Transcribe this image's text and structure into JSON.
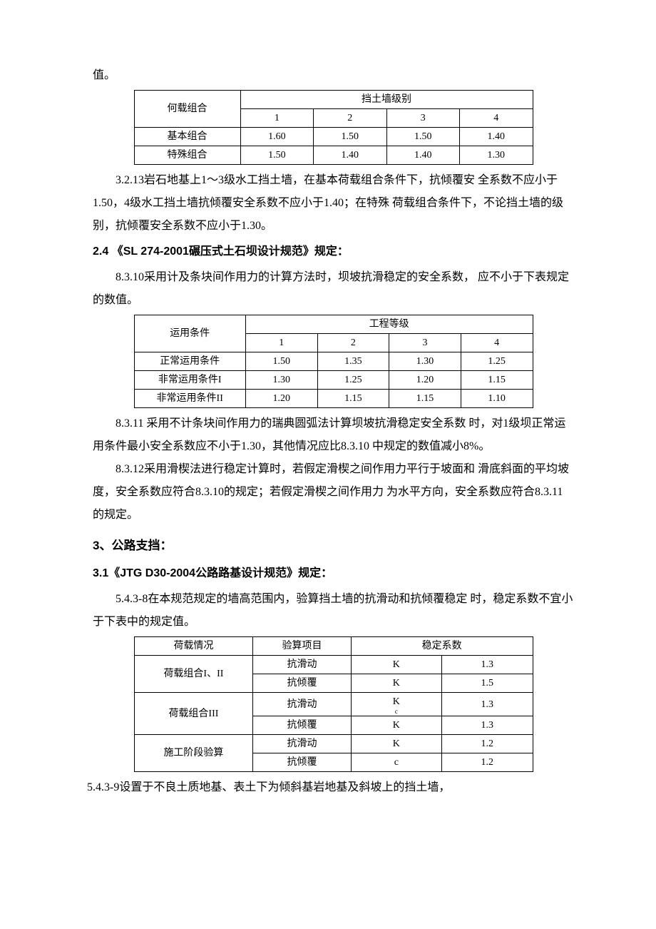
{
  "p_top": "值。",
  "table1": {
    "header_left": "何载组合",
    "header_span": "挡土墙级别",
    "cols": [
      "1",
      "2",
      "3",
      "4"
    ],
    "rows": [
      {
        "label": "基本组合",
        "vals": [
          "1.60",
          "1.50",
          "1.50",
          "1.40"
        ]
      },
      {
        "label": "特殊组合",
        "vals": [
          "1.50",
          "1.40",
          "1.40",
          "1.30"
        ]
      }
    ]
  },
  "p_3_2_13": "3.2.13岩石地基上1～3级水工挡土墙，在基本荷载组合条件下，抗倾覆安 全系数不应小于1.50，4级水工挡土墙抗倾覆安全系数不应小于1.40；在特殊 荷载组合条件下，不论挡土墙的级别，抗倾覆安全系数不应小于1.30。",
  "h_2_4": "2.4 《SL 274-2001碾压式土石坝设计规范》规定：",
  "p_8_3_10": "8.3.10采用计及条块间作用力的计算方法时，坝坡抗滑稳定的安全系数， 应不小于下表规定的数值。",
  "table2": {
    "header_left": "运用条件",
    "header_span": "工程等级",
    "cols": [
      "1",
      "2",
      "3",
      "4"
    ],
    "rows": [
      {
        "label": "正常运用条件",
        "vals": [
          "1.50",
          "1.35",
          "1.30",
          "1.25"
        ]
      },
      {
        "label": "非常运用条件I",
        "vals": [
          "1.30",
          "1.25",
          "1.20",
          "1.15"
        ]
      },
      {
        "label": "非常运用条件II",
        "vals": [
          "1.20",
          "1.15",
          "1.15",
          "1.10"
        ]
      }
    ]
  },
  "p_8_3_11": "8.3.11 采用不计条块间作用力的瑞典圆弧法计算坝坡抗滑稳定安全系数 时，对1级坝正常运用条件最小安全系数应不小于1.30，其他情况应比8.3.10 中规定的数值减小8%。",
  "p_8_3_12": "8.3.12采用滑楔法进行稳定计算时，若假定滑楔之间作用力平行于坡面和 滑底斜面的平均坡度，安全系数应符合8.3.10的规定；若假定滑楔之间作用力 为水平方向，安全系数应符合8.3.11的规定。",
  "h_3": "3、公路支挡：",
  "h_3_1": "3.1《JTG D30-2004公路路基设计规范》规定：",
  "p_5_4_3_8": "5.4.3-8在本规范规定的墙高范围内，验算挡土墙的抗滑动和抗倾覆稳定 时，稳定系数不宜小于下表中的规定值。",
  "table3": {
    "headers": [
      "荷载情况",
      "验算项目",
      "稳定系数"
    ],
    "rows": [
      {
        "label": "荷载组合I、II",
        "items": [
          {
            "a": "抗滑动",
            "b": "K",
            "sub": "",
            "c": "1.3"
          },
          {
            "a": "抗倾覆",
            "b": "K",
            "sub": "",
            "c": "1.5"
          }
        ]
      },
      {
        "label": "荷载组合III",
        "items": [
          {
            "a": "抗滑动",
            "b": "K",
            "sub": "c",
            "c": "1.3"
          },
          {
            "a": "抗倾覆",
            "b": "K",
            "sub": "",
            "c": "1.3"
          }
        ]
      },
      {
        "label": "施工阶段验算",
        "items": [
          {
            "a": "抗滑动",
            "b": "K",
            "sub": "",
            "c": "1.2"
          },
          {
            "a": "抗倾覆",
            "b": "c",
            "sub": "",
            "c": "1.2"
          }
        ]
      }
    ]
  },
  "p_5_4_3_9": "5.4.3-9设置于不良土质地基、表土下为倾斜基岩地基及斜坡上的挡土墙，"
}
